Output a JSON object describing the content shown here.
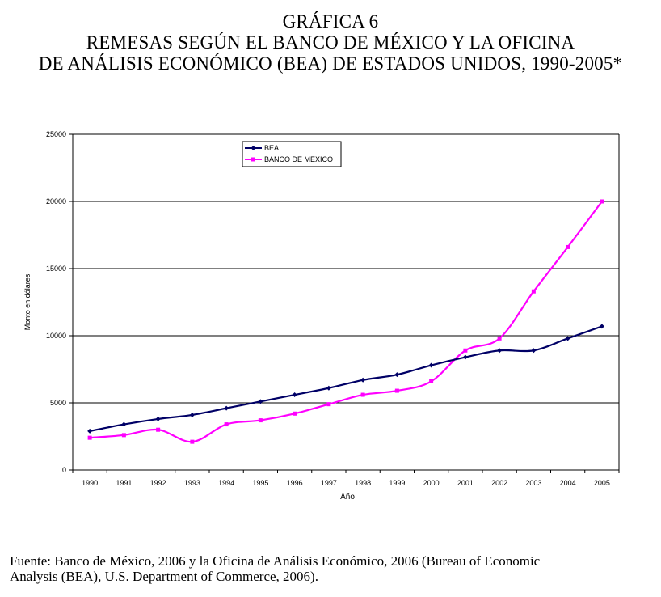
{
  "header": {
    "figure_label": "GRÁFICA 6",
    "title_line1": "REMESAS SEGÚN EL BANCO DE MÉXICO Y LA OFICINA",
    "title_line2": "DE ANÁLISIS ECONÓMICO (BEA) DE ESTADOS UNIDOS, 1990-2005*"
  },
  "chart_data": {
    "type": "line",
    "title": "REMESAS SEGÚN EL BANCO DE MÉXICO Y LA OFICINA DE ANÁLISIS ECONÓMICO (BEA) DE ESTADOS UNIDOS, 1990-2005*",
    "xlabel": "Año",
    "ylabel": "Monto en dólares",
    "categories": [
      "1990",
      "1991",
      "1992",
      "1993",
      "1994",
      "1995",
      "1996",
      "1997",
      "1998",
      "1999",
      "2000",
      "2001",
      "2002",
      "2003",
      "2004",
      "2005"
    ],
    "ylim": [
      0,
      25000
    ],
    "yticks": [
      "0",
      "5000",
      "10000",
      "15000",
      "20000",
      "25000"
    ],
    "grid": true,
    "legend_position": "top-center",
    "series": [
      {
        "name": "BEA",
        "color": "#000066",
        "marker": "diamond",
        "values": [
          2900,
          3400,
          3800,
          4100,
          4600,
          5100,
          5600,
          6100,
          6700,
          7100,
          7800,
          8400,
          8900,
          8900,
          9800,
          10700
        ]
      },
      {
        "name": "BANCO DE MEXICO",
        "color": "#ff00ff",
        "marker": "square",
        "values": [
          2400,
          2600,
          3000,
          2100,
          3400,
          3700,
          4200,
          4900,
          5600,
          5900,
          6600,
          8900,
          9800,
          13300,
          16600,
          20000
        ]
      }
    ]
  },
  "footer": {
    "source_line1": "Fuente: Banco de México, 2006 y  la Oficina de Análisis Económico, 2006 (Bureau of Economic",
    "source_line2": "Analysis (BEA), U.S. Department of Commerce, 2006)."
  }
}
